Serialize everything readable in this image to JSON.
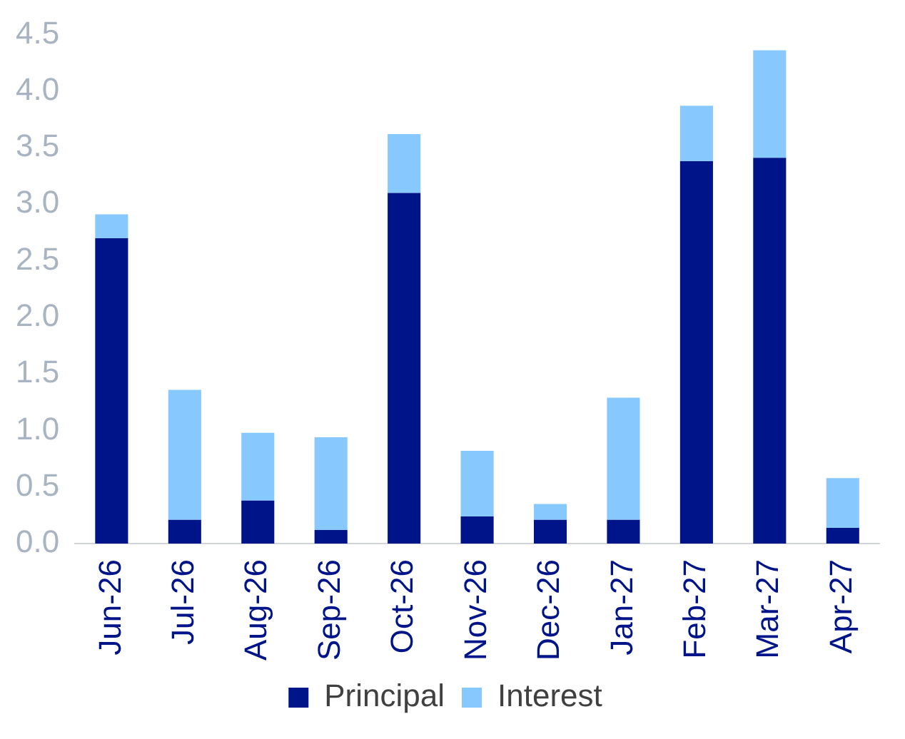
{
  "chart_data": {
    "type": "bar",
    "stacked": true,
    "categories": [
      "Jun-26",
      "Jul-26",
      "Aug-26",
      "Sep-26",
      "Oct-26",
      "Nov-26",
      "Dec-26",
      "Jan-27",
      "Feb-27",
      "Mar-27",
      "Apr-27"
    ],
    "series": [
      {
        "name": "Principal",
        "color": "#001489",
        "values": [
          2.7,
          0.21,
          0.38,
          0.12,
          3.1,
          0.24,
          0.21,
          0.21,
          3.38,
          3.41,
          0.14
        ]
      },
      {
        "name": "Interest",
        "color": "#87c8ff",
        "values": [
          0.21,
          1.15,
          0.6,
          0.82,
          0.52,
          0.58,
          0.14,
          1.08,
          0.49,
          0.95,
          0.44
        ]
      }
    ],
    "ylim": [
      0,
      4.5
    ],
    "yticks": [
      {
        "value": 0,
        "label": "0.0"
      },
      {
        "value": 0.5,
        "label": "0.5"
      },
      {
        "value": 1,
        "label": "1.0"
      },
      {
        "value": 1.5,
        "label": "1.5"
      },
      {
        "value": 2,
        "label": "2.0"
      },
      {
        "value": 2.5,
        "label": "2.5"
      },
      {
        "value": 3,
        "label": "3.0"
      },
      {
        "value": 3.5,
        "label": "3.5"
      },
      {
        "value": 4,
        "label": "4.0"
      },
      {
        "value": 4.5,
        "label": "4.5"
      }
    ],
    "grid": false,
    "legend": "bottom"
  }
}
